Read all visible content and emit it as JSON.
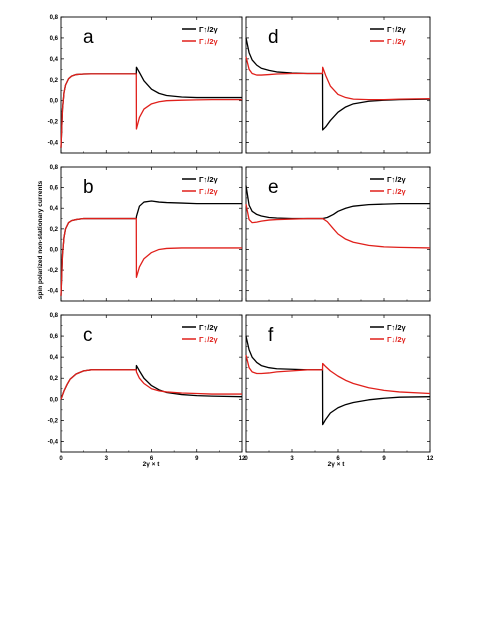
{
  "figure": {
    "ylabel": "spin polarized non-stationary currents",
    "xlabel": "2γ × t",
    "colors": {
      "black_series": "#000000",
      "red_series": "#e0201b",
      "axes": "#000000"
    }
  },
  "chart_data": [
    {
      "type": "line",
      "panel": "a",
      "xlim": [
        0,
        12
      ],
      "ylim": [
        -0.5,
        0.8
      ],
      "xticks": [
        "0",
        "3",
        "6",
        "9",
        "12"
      ],
      "yticks": [
        "-0,4",
        "-0,2",
        "0,0",
        "0,2",
        "0,4",
        "0,6",
        "0,8"
      ],
      "legend": {
        "position": "top-right",
        "entries": [
          "Γ↑/2γ",
          "Γ↓/2γ"
        ]
      },
      "series": [
        {
          "color": "#000000",
          "x": [
            0,
            0.1,
            0.2,
            0.3,
            0.5,
            0.7,
            1.0,
            1.5,
            2.0,
            3.0,
            4.0,
            4.99,
            5.0,
            5.2,
            5.5,
            6.0,
            6.5,
            7.0,
            8.0,
            9.0,
            10.0,
            12.0
          ],
          "y": [
            -0.45,
            -0.08,
            0.08,
            0.15,
            0.21,
            0.235,
            0.25,
            0.255,
            0.256,
            0.256,
            0.256,
            0.256,
            0.32,
            0.27,
            0.19,
            0.11,
            0.07,
            0.05,
            0.035,
            0.03,
            0.03,
            0.03
          ]
        },
        {
          "color": "#e0201b",
          "x": [
            0,
            0.1,
            0.2,
            0.3,
            0.5,
            0.7,
            1.0,
            1.5,
            2.0,
            3.0,
            4.0,
            4.99,
            5.0,
            5.2,
            5.5,
            6.0,
            6.5,
            7.0,
            8.0,
            9.0,
            10.0,
            12.0
          ],
          "y": [
            -0.45,
            -0.08,
            0.08,
            0.15,
            0.21,
            0.235,
            0.25,
            0.255,
            0.256,
            0.256,
            0.256,
            0.256,
            -0.27,
            -0.16,
            -0.08,
            -0.03,
            -0.01,
            0.0,
            0.005,
            0.008,
            0.01,
            0.01
          ]
        }
      ]
    },
    {
      "type": "line",
      "panel": "b",
      "xlim": [
        0,
        12
      ],
      "ylim": [
        -0.5,
        0.8
      ],
      "xticks": [
        "0",
        "3",
        "6",
        "9",
        "12"
      ],
      "yticks": [
        "-0,4",
        "-0,2",
        "0,0",
        "0,2",
        "0,4",
        "0,6",
        "0,8"
      ],
      "legend": {
        "position": "top-right",
        "entries": [
          "Γ↑/2γ",
          "Γ↓/2γ"
        ]
      },
      "series": [
        {
          "color": "#000000",
          "x": [
            0,
            0.1,
            0.2,
            0.3,
            0.5,
            0.7,
            1.0,
            1.5,
            2.0,
            3.0,
            4.0,
            4.99,
            5.0,
            5.2,
            5.5,
            6.0,
            6.5,
            7.0,
            8.0,
            9.0,
            10.0,
            12.0
          ],
          "y": [
            -0.45,
            -0.05,
            0.12,
            0.2,
            0.26,
            0.28,
            0.29,
            0.3,
            0.3,
            0.3,
            0.3,
            0.3,
            0.32,
            0.42,
            0.46,
            0.47,
            0.46,
            0.455,
            0.45,
            0.445,
            0.445,
            0.445
          ]
        },
        {
          "color": "#e0201b",
          "x": [
            0,
            0.1,
            0.2,
            0.3,
            0.5,
            0.7,
            1.0,
            1.5,
            2.0,
            3.0,
            4.0,
            4.99,
            5.0,
            5.2,
            5.5,
            6.0,
            6.5,
            7.0,
            8.0,
            9.0,
            10.0,
            12.0
          ],
          "y": [
            -0.45,
            -0.05,
            0.12,
            0.2,
            0.26,
            0.28,
            0.29,
            0.3,
            0.3,
            0.3,
            0.3,
            0.3,
            -0.27,
            -0.17,
            -0.09,
            -0.03,
            0.0,
            0.01,
            0.015,
            0.015,
            0.015,
            0.015
          ]
        }
      ]
    },
    {
      "type": "line",
      "panel": "c",
      "xlim": [
        0,
        12
      ],
      "ylim": [
        -0.5,
        0.8
      ],
      "xticks": [
        "0",
        "3",
        "6",
        "9",
        "12"
      ],
      "yticks": [
        "-0,4",
        "-0,2",
        "0,0",
        "0,2",
        "0,4",
        "0,6",
        "0,8"
      ],
      "legend": {
        "position": "top-right",
        "entries": [
          "Γ↑/2γ",
          "Γ↓/2γ"
        ]
      },
      "series": [
        {
          "color": "#000000",
          "x": [
            0,
            0.2,
            0.4,
            0.6,
            1.0,
            1.5,
            2.0,
            3.0,
            4.0,
            4.99,
            5.0,
            5.2,
            5.5,
            6.0,
            6.5,
            7.0,
            8.0,
            9.0,
            10.0,
            12.0
          ],
          "y": [
            0.0,
            0.08,
            0.14,
            0.19,
            0.24,
            0.27,
            0.28,
            0.28,
            0.28,
            0.28,
            0.32,
            0.27,
            0.2,
            0.13,
            0.09,
            0.065,
            0.045,
            0.035,
            0.03,
            0.025
          ]
        },
        {
          "color": "#e0201b",
          "x": [
            0,
            0.2,
            0.4,
            0.6,
            1.0,
            1.5,
            2.0,
            3.0,
            4.0,
            4.99,
            5.0,
            5.2,
            5.5,
            6.0,
            6.5,
            7.0,
            8.0,
            9.0,
            10.0,
            12.0
          ],
          "y": [
            0.0,
            0.08,
            0.14,
            0.19,
            0.24,
            0.27,
            0.28,
            0.28,
            0.28,
            0.28,
            0.26,
            0.2,
            0.15,
            0.1,
            0.08,
            0.07,
            0.06,
            0.055,
            0.05,
            0.05
          ]
        }
      ]
    },
    {
      "type": "line",
      "panel": "d",
      "xlim": [
        0,
        12
      ],
      "ylim": [
        -0.5,
        0.8
      ],
      "xticks": [
        "0",
        "3",
        "6",
        "9",
        "12"
      ],
      "legend": {
        "position": "top-right",
        "entries": [
          "Γ↑/2γ",
          "Γ↓/2γ"
        ]
      },
      "series": [
        {
          "color": "#000000",
          "x": [
            0,
            0.2,
            0.4,
            0.7,
            1.0,
            1.5,
            2.0,
            3.0,
            4.0,
            4.99,
            5.0,
            5.2,
            5.5,
            6.0,
            6.5,
            7.0,
            8.0,
            9.0,
            10.0,
            12.0
          ],
          "y": [
            0.6,
            0.46,
            0.39,
            0.34,
            0.31,
            0.29,
            0.275,
            0.265,
            0.26,
            0.26,
            -0.28,
            -0.25,
            -0.19,
            -0.11,
            -0.06,
            -0.03,
            -0.005,
            0.005,
            0.01,
            0.015
          ]
        },
        {
          "color": "#e0201b",
          "x": [
            0,
            0.2,
            0.4,
            0.7,
            1.0,
            1.5,
            2.0,
            3.0,
            4.0,
            4.99,
            5.0,
            5.2,
            5.5,
            6.0,
            6.5,
            7.0,
            8.0,
            9.0,
            10.0,
            12.0
          ],
          "y": [
            0.42,
            0.3,
            0.26,
            0.245,
            0.245,
            0.25,
            0.255,
            0.26,
            0.26,
            0.26,
            0.32,
            0.24,
            0.14,
            0.06,
            0.03,
            0.015,
            0.01,
            0.01,
            0.015,
            0.02
          ]
        }
      ]
    },
    {
      "type": "line",
      "panel": "e",
      "xlim": [
        0,
        12
      ],
      "ylim": [
        -0.5,
        0.8
      ],
      "xticks": [
        "0",
        "3",
        "6",
        "9",
        "12"
      ],
      "legend": {
        "position": "top-right",
        "entries": [
          "Γ↑/2γ",
          "Γ↓/2γ"
        ]
      },
      "series": [
        {
          "color": "#000000",
          "x": [
            0,
            0.2,
            0.4,
            0.7,
            1.0,
            1.5,
            2.0,
            3.0,
            4.0,
            4.99,
            5.0,
            5.3,
            5.7,
            6.0,
            6.5,
            7.0,
            8.0,
            9.0,
            10.0,
            12.0
          ],
          "y": [
            0.62,
            0.43,
            0.37,
            0.34,
            0.325,
            0.31,
            0.305,
            0.3,
            0.3,
            0.3,
            0.3,
            0.31,
            0.34,
            0.37,
            0.4,
            0.42,
            0.435,
            0.44,
            0.445,
            0.445
          ]
        },
        {
          "color": "#e0201b",
          "x": [
            0,
            0.2,
            0.4,
            0.7,
            1.0,
            1.5,
            2.0,
            3.0,
            4.0,
            4.99,
            5.0,
            5.3,
            5.7,
            6.0,
            6.5,
            7.0,
            8.0,
            9.0,
            10.0,
            12.0
          ],
          "y": [
            0.44,
            0.29,
            0.26,
            0.265,
            0.275,
            0.285,
            0.29,
            0.295,
            0.3,
            0.3,
            0.3,
            0.27,
            0.2,
            0.15,
            0.1,
            0.07,
            0.04,
            0.025,
            0.02,
            0.015
          ]
        }
      ]
    },
    {
      "type": "line",
      "panel": "f",
      "xlim": [
        0,
        12
      ],
      "ylim": [
        -0.5,
        0.8
      ],
      "xticks": [
        "0",
        "3",
        "6",
        "9",
        "12"
      ],
      "legend": {
        "position": "top-right",
        "entries": [
          "Γ↑/2γ",
          "Γ↓/2γ"
        ]
      },
      "series": [
        {
          "color": "#000000",
          "x": [
            0,
            0.2,
            0.4,
            0.7,
            1.0,
            1.5,
            2.0,
            3.0,
            4.0,
            4.99,
            5.0,
            5.2,
            5.5,
            6.0,
            6.5,
            7.0,
            8.0,
            9.0,
            10.0,
            12.0
          ],
          "y": [
            0.6,
            0.47,
            0.4,
            0.35,
            0.32,
            0.3,
            0.29,
            0.285,
            0.28,
            0.28,
            -0.24,
            -0.19,
            -0.13,
            -0.08,
            -0.05,
            -0.03,
            -0.005,
            0.01,
            0.02,
            0.025
          ]
        },
        {
          "color": "#e0201b",
          "x": [
            0,
            0.2,
            0.4,
            0.7,
            1.0,
            1.5,
            2.0,
            3.0,
            4.0,
            4.99,
            5.0,
            5.2,
            5.5,
            6.0,
            6.5,
            7.0,
            8.0,
            9.0,
            10.0,
            12.0
          ],
          "y": [
            0.42,
            0.3,
            0.26,
            0.245,
            0.245,
            0.25,
            0.26,
            0.27,
            0.28,
            0.28,
            0.34,
            0.31,
            0.27,
            0.22,
            0.18,
            0.15,
            0.11,
            0.085,
            0.07,
            0.055
          ]
        }
      ]
    }
  ]
}
